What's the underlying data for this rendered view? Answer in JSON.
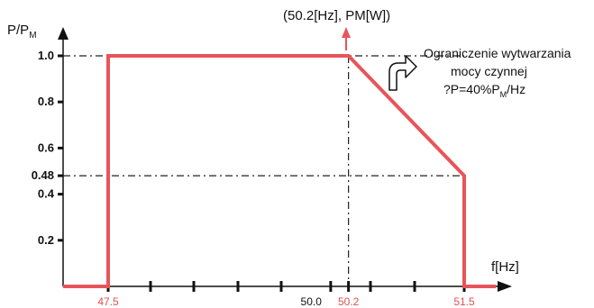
{
  "chart_data": {
    "type": "line",
    "ylabel_main": "P/P",
    "ylabel_sub": "M",
    "xlabel": "f[Hz]",
    "top_annotation": "(50.2[Hz], PM[W])",
    "side_note": {
      "line1": "Ograniczenie wytwarzania",
      "line2": "mocy czynnej",
      "line3_a": "?P=40%P",
      "line3_sub": "M",
      "line3_b": "/Hz"
    },
    "y_ticks": [
      {
        "value": 1.0,
        "label": "1.0"
      },
      {
        "value": 0.8,
        "label": "0.8"
      },
      {
        "value": 0.6,
        "label": "0.6"
      },
      {
        "value": 0.48,
        "label": "0.48"
      },
      {
        "value": 0.4,
        "label": "0.4"
      },
      {
        "value": 0.2,
        "label": "0.2"
      }
    ],
    "x_ticks": [
      {
        "value": 47.5,
        "label": "47.5",
        "color": "#d9534f"
      },
      {
        "value": 50.0,
        "label": "50.0",
        "color": "#111111"
      },
      {
        "value": 50.2,
        "label": "50.2",
        "color": "#d9534f"
      },
      {
        "value": 51.5,
        "label": "51.5",
        "color": "#d9534f"
      }
    ],
    "series": [
      {
        "color": "#e8545a",
        "points": [
          [
            46.5,
            0
          ],
          [
            47.5,
            0
          ],
          [
            47.5,
            1.0
          ],
          [
            50.2,
            1.0
          ],
          [
            51.5,
            0.48
          ],
          [
            51.5,
            0
          ],
          [
            52.2,
            0
          ]
        ]
      }
    ],
    "reference_lines": [
      {
        "orientation": "h",
        "value": 1.0
      },
      {
        "orientation": "h",
        "value": 0.48
      },
      {
        "orientation": "v",
        "value": 50.2
      }
    ],
    "xlim": [
      46.5,
      52.2
    ],
    "ylim": [
      0,
      1.1
    ],
    "grid": false,
    "legend": "none"
  }
}
